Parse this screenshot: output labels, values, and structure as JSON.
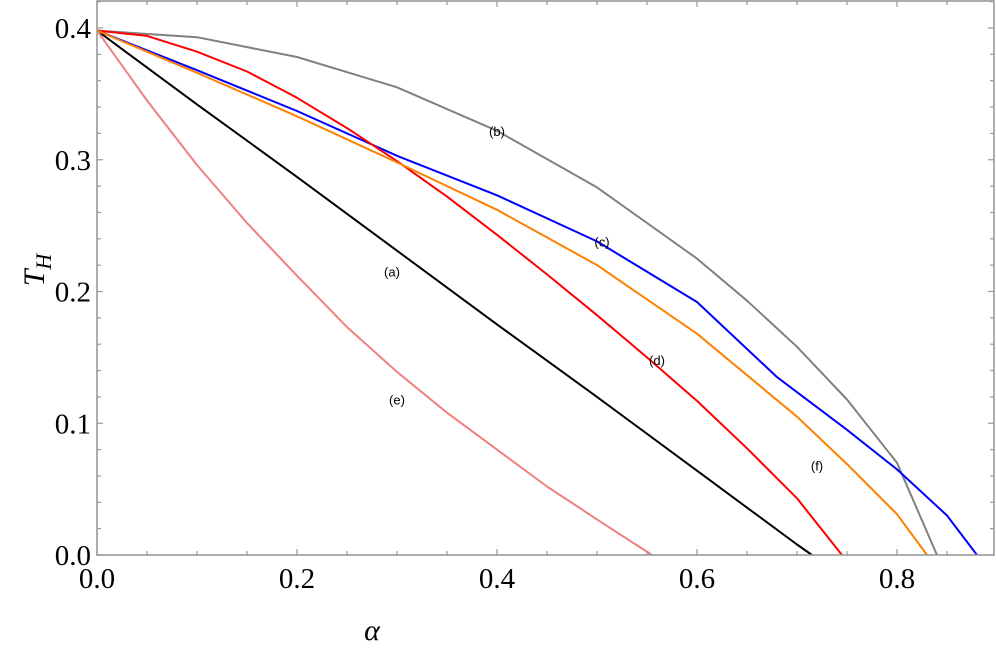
{
  "chart_data": {
    "type": "line",
    "title": "",
    "xlabel": "α",
    "ylabel": "T_H",
    "ylabel_main": "T",
    "ylabel_sub": "H",
    "xlim": [
      0.0,
      0.9
    ],
    "ylim": [
      0.0,
      0.42
    ],
    "grid": false,
    "legend": "none (inline curve labels)",
    "x_ticks": [
      "0.0",
      "0.2",
      "0.4",
      "0.6",
      "0.8"
    ],
    "y_ticks": [
      "0.0",
      "0.1",
      "0.2",
      "0.3",
      "0.4"
    ],
    "series": [
      {
        "name": "(a)",
        "color": "#000000",
        "label_pos": [
          0.295,
          0.215
        ],
        "x": [
          0,
          0.1,
          0.2,
          0.3,
          0.4,
          0.5,
          0.6,
          0.7,
          0.715
        ],
        "y": [
          0.398,
          0.342,
          0.287,
          0.231,
          0.175,
          0.12,
          0.064,
          0.008,
          0.0
        ]
      },
      {
        "name": "(b)",
        "color": "#808080",
        "label_pos": [
          0.4,
          0.322
        ],
        "x": [
          0,
          0.1,
          0.2,
          0.3,
          0.4,
          0.5,
          0.6,
          0.65,
          0.7,
          0.75,
          0.8,
          0.84
        ],
        "y": [
          0.398,
          0.393,
          0.378,
          0.355,
          0.322,
          0.279,
          0.225,
          0.193,
          0.158,
          0.118,
          0.07,
          0.0
        ]
      },
      {
        "name": "(c)",
        "color": "#0000ff",
        "label_pos": [
          0.505,
          0.238
        ],
        "x": [
          0,
          0.1,
          0.2,
          0.3,
          0.4,
          0.5,
          0.6,
          0.68,
          0.75,
          0.8,
          0.85,
          0.88
        ],
        "y": [
          0.398,
          0.368,
          0.337,
          0.303,
          0.273,
          0.238,
          0.192,
          0.135,
          0.095,
          0.065,
          0.03,
          0.0
        ]
      },
      {
        "name": "(d)",
        "color": "#ff0000",
        "label_pos": [
          0.56,
          0.148
        ],
        "x": [
          0,
          0.05,
          0.1,
          0.15,
          0.2,
          0.25,
          0.3,
          0.35,
          0.4,
          0.45,
          0.5,
          0.55,
          0.6,
          0.65,
          0.7,
          0.745
        ],
        "y": [
          0.398,
          0.394,
          0.382,
          0.367,
          0.347,
          0.324,
          0.299,
          0.272,
          0.243,
          0.213,
          0.182,
          0.15,
          0.117,
          0.081,
          0.043,
          0.0
        ]
      },
      {
        "name": "(e)",
        "color": "#f08080",
        "label_pos": [
          0.3,
          0.118
        ],
        "x": [
          0,
          0.05,
          0.1,
          0.15,
          0.2,
          0.25,
          0.3,
          0.35,
          0.4,
          0.45,
          0.5,
          0.555
        ],
        "y": [
          0.398,
          0.345,
          0.296,
          0.252,
          0.212,
          0.173,
          0.139,
          0.108,
          0.08,
          0.052,
          0.027,
          0.0
        ]
      },
      {
        "name": "(f)",
        "color": "#ff8000",
        "label_pos": [
          0.72,
          0.068
        ],
        "x": [
          0,
          0.1,
          0.2,
          0.3,
          0.4,
          0.5,
          0.6,
          0.7,
          0.75,
          0.8,
          0.83
        ],
        "y": [
          0.398,
          0.366,
          0.333,
          0.298,
          0.262,
          0.22,
          0.168,
          0.105,
          0.069,
          0.031,
          0.0
        ]
      }
    ]
  }
}
